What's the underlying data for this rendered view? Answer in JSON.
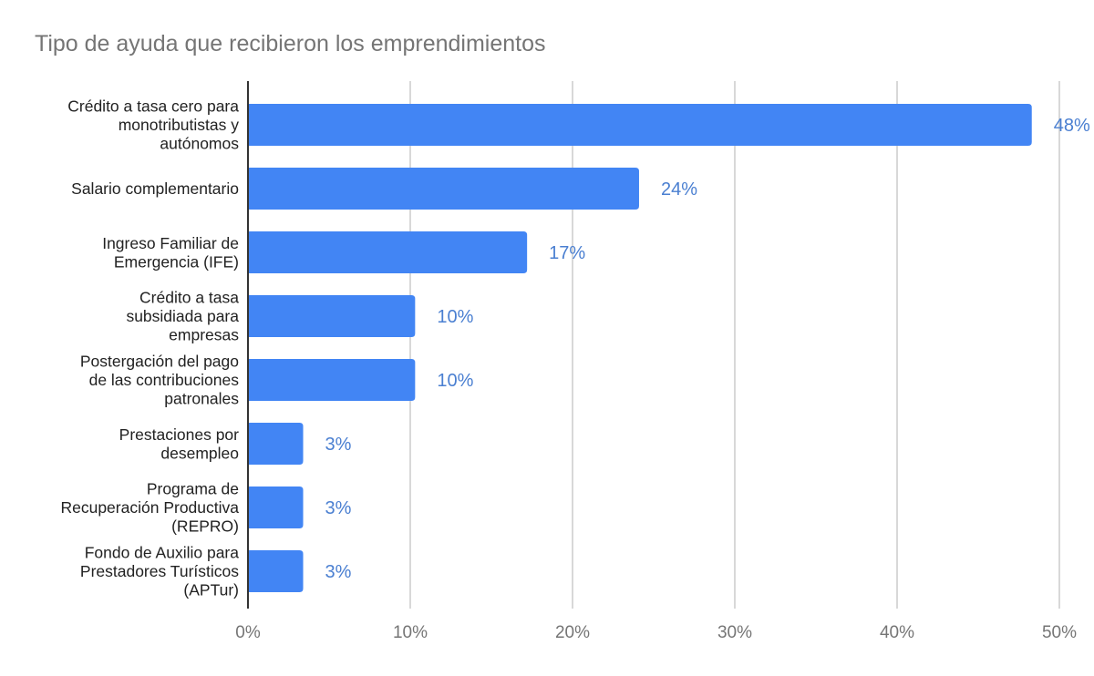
{
  "chart_data": {
    "type": "bar",
    "orientation": "horizontal",
    "title": "Tipo de ayuda que recibieron los emprendimientos",
    "xlabel": "",
    "ylabel": "",
    "xlim": [
      0,
      50
    ],
    "x_ticks": [
      0,
      10,
      20,
      30,
      40,
      50
    ],
    "x_tick_labels": [
      "0%",
      "10%",
      "20%",
      "30%",
      "40%",
      "50%"
    ],
    "grid": true,
    "legend": "none",
    "bar_color": "#4285f4",
    "label_color": "#4a7fd1",
    "categories": [
      [
        "Crédito a tasa cero para",
        "monotributistas y",
        "autónomos"
      ],
      [
        "Salario complementario"
      ],
      [
        "Ingreso Familiar de",
        "Emergencia (IFE)"
      ],
      [
        "Crédito a tasa",
        "subsidiada para",
        "empresas"
      ],
      [
        "Postergación del pago",
        "de las contribuciones",
        "patronales"
      ],
      [
        "Prestaciones por",
        "desempleo"
      ],
      [
        "Programa de",
        "Recuperación Productiva",
        "(REPRO)"
      ],
      [
        "Fondo de Auxilio para",
        "Prestadores Turísticos",
        "(APTur)"
      ]
    ],
    "values": [
      48.3,
      24.1,
      17.2,
      10.3,
      10.3,
      3.4,
      3.4,
      3.4
    ],
    "data_labels": [
      "48%",
      "24%",
      "17%",
      "10%",
      "10%",
      "3%",
      "3%",
      "3%"
    ]
  }
}
